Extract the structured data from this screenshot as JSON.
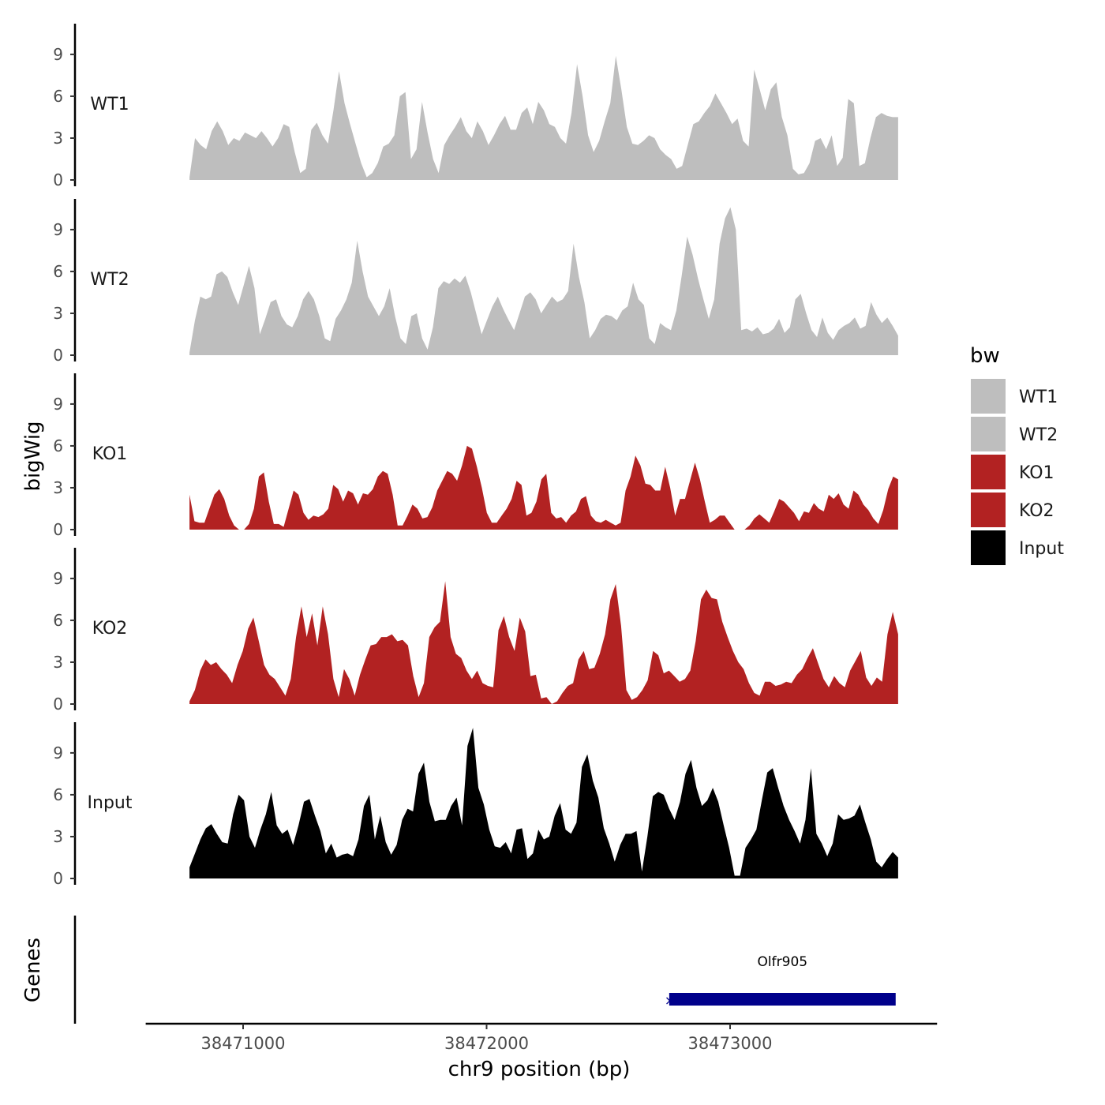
{
  "chart_data": {
    "type": "area",
    "xlabel": "chr9 position (bp)",
    "ylabel": "bigWig",
    "genes_label": "Genes",
    "xlim": [
      38470600,
      38473850
    ],
    "x_ticks": [
      38471000,
      38472000,
      38473000
    ],
    "x_tick_labels": [
      "38471000",
      "38472000",
      "38473000"
    ],
    "ylim": [
      0,
      11.2
    ],
    "y_ticks": [
      0,
      3,
      6,
      9
    ],
    "y_tick_labels": [
      "0",
      "3",
      "6",
      "9"
    ],
    "track_x_start": 38470780,
    "track_x_end": 38473690,
    "legend": {
      "title": "bw",
      "items": [
        {
          "label": "WT1",
          "color": "#BEBEBE"
        },
        {
          "label": "WT2",
          "color": "#BEBEBE"
        },
        {
          "label": "KO1",
          "color": "#B22222"
        },
        {
          "label": "KO2",
          "color": "#B22222"
        },
        {
          "label": "Input",
          "color": "#000000"
        }
      ]
    },
    "series": [
      {
        "name": "WT1",
        "color": "#BEBEBE",
        "values": [
          0.2,
          3,
          2.5,
          2.2,
          3.5,
          4.2,
          3.5,
          2.5,
          3,
          2.8,
          3.4,
          3.2,
          3,
          3.5,
          3,
          2.4,
          3,
          4,
          3.8,
          2,
          0.5,
          0.8,
          3.6,
          4.1,
          3.2,
          2.6,
          5,
          7.8,
          5.5,
          4,
          2.6,
          1.2,
          0.2,
          0.5,
          1.2,
          2.4,
          2.6,
          3.2,
          6,
          6.3,
          1.5,
          2.2,
          5.6,
          3.4,
          1.5,
          0.5,
          2.5,
          3.2,
          3.8,
          4.5,
          3.5,
          3,
          4.2,
          3.5,
          2.5,
          3.2,
          4,
          4.6,
          3.6,
          3.6,
          4.8,
          5.2,
          4,
          5.6,
          5,
          4,
          3.8,
          3,
          2.6,
          4.8,
          8.3,
          6,
          3.2,
          2,
          2.8,
          4.2,
          5.5,
          8.9,
          6.5,
          3.8,
          2.6,
          2.5,
          2.8,
          3.2,
          3,
          2.2,
          1.8,
          1.5,
          0.8,
          1,
          2.5,
          4,
          4.2,
          4.8,
          5.3,
          6.2,
          5.5,
          4.8,
          4,
          4.4,
          2.8,
          2.4,
          7.9,
          6.5,
          5,
          6.5,
          7,
          4.5,
          3.2,
          0.8,
          0.4,
          0.5,
          1.2,
          2.8,
          3,
          2.2,
          3.2,
          1,
          1.6,
          5.8,
          5.5,
          1,
          1.2,
          3,
          4.5,
          4.8,
          4.6,
          4.5,
          4.5
        ]
      },
      {
        "name": "WT2",
        "color": "#BEBEBE",
        "values": [
          0.2,
          2.5,
          4.2,
          4,
          4.2,
          5.8,
          6,
          5.6,
          4.5,
          3.6,
          5,
          6.4,
          4.8,
          1.5,
          2.6,
          3.8,
          4,
          2.8,
          2.2,
          2,
          2.8,
          4,
          4.6,
          4,
          2.8,
          1.2,
          1,
          2.6,
          3.2,
          4,
          5.2,
          8.2,
          6,
          4.2,
          3.5,
          2.8,
          3.5,
          4.8,
          2.8,
          1.2,
          0.8,
          2.8,
          3,
          1.2,
          0.4,
          2,
          4.8,
          5.3,
          5.1,
          5.5,
          5.2,
          5.7,
          4.5,
          3,
          1.5,
          2.5,
          3.5,
          4.2,
          3.3,
          2.5,
          1.8,
          3,
          4.2,
          4.5,
          4,
          3,
          3.6,
          4.2,
          3.8,
          4,
          4.6,
          8,
          5.6,
          3.8,
          1.2,
          1.8,
          2.6,
          2.9,
          2.8,
          2.5,
          3.2,
          3.5,
          5.2,
          4,
          3.6,
          1.2,
          0.8,
          2.3,
          2,
          1.8,
          3.2,
          5.7,
          8.5,
          7.2,
          5.5,
          4,
          2.6,
          4,
          8,
          9.8,
          10.6,
          9,
          1.8,
          1.9,
          1.7,
          2,
          1.5,
          1.6,
          1.9,
          2.6,
          1.6,
          2,
          4,
          4.4,
          3,
          1.8,
          1.3,
          2.7,
          1.6,
          1.1,
          1.8,
          2.1,
          2.3,
          2.7,
          1.9,
          2.1,
          3.8,
          2.9,
          2.3,
          2.7,
          2.1,
          1.4
        ]
      },
      {
        "name": "KO1",
        "color": "#B22222",
        "values": [
          2.5,
          0.6,
          0.5,
          0.5,
          1.5,
          2.5,
          2.9,
          2.2,
          1,
          0.3,
          0,
          0,
          0.4,
          1.5,
          3.8,
          4.1,
          2,
          0.4,
          0.4,
          0.2,
          1.5,
          2.8,
          2.5,
          1.2,
          0.7,
          1,
          0.9,
          1.1,
          1.5,
          3.2,
          2.9,
          2,
          2.8,
          2.6,
          1.8,
          2.6,
          2.5,
          2.9,
          3.8,
          4.2,
          4,
          2.5,
          0.3,
          0.3,
          1,
          1.8,
          1.5,
          0.8,
          0.9,
          1.6,
          2.8,
          3.5,
          4.2,
          4,
          3.5,
          4.6,
          6,
          5.8,
          4.5,
          3,
          1.2,
          0.5,
          0.5,
          1,
          1.5,
          2.2,
          3.5,
          3.2,
          1,
          1.2,
          2,
          3.6,
          4,
          1.2,
          0.8,
          0.9,
          0.5,
          1,
          1.3,
          2.2,
          2.4,
          1,
          0.6,
          0.5,
          0.7,
          0.5,
          0.3,
          0.5,
          2.8,
          3.8,
          5.3,
          4.6,
          3.3,
          3.2,
          2.8,
          2.8,
          4.5,
          3,
          1,
          2.2,
          2.2,
          3.5,
          4.8,
          3.6,
          2,
          0.5,
          0.7,
          1,
          1,
          0.5,
          0,
          0,
          0,
          0.3,
          0.8,
          1.1,
          0.8,
          0.5,
          1.3,
          2.2,
          2,
          1.6,
          1.2,
          0.6,
          1.3,
          1.2,
          1.9,
          1.5,
          1.3,
          2.5,
          2.2,
          2.6,
          1.8,
          1.5,
          2.8,
          2.5,
          1.8,
          1.4,
          0.8,
          0.4,
          1.4,
          2.9,
          3.8,
          3.6
        ]
      },
      {
        "name": "KO2",
        "color": "#B22222",
        "values": [
          0.2,
          1,
          2.4,
          3.2,
          2.8,
          3,
          2.5,
          2.1,
          1.5,
          2.8,
          3.8,
          5.4,
          6.2,
          4.5,
          2.8,
          2.1,
          1.8,
          1.2,
          0.6,
          1.8,
          4.8,
          7,
          4.8,
          6.5,
          4.2,
          7,
          5,
          1.8,
          0.5,
          2.5,
          1.8,
          0.6,
          2.1,
          3.2,
          4.2,
          4.3,
          4.8,
          4.8,
          5,
          4.5,
          4.6,
          4.2,
          2,
          0.5,
          1.5,
          4.8,
          5.5,
          5.9,
          8.8,
          4.8,
          3.6,
          3.3,
          2.4,
          1.8,
          2.4,
          1.5,
          1.3,
          1.2,
          5.3,
          6.3,
          4.8,
          3.8,
          6.2,
          5.2,
          2,
          2.1,
          0.4,
          0.5,
          0,
          0.2,
          0.8,
          1.3,
          1.5,
          3.2,
          3.8,
          2.5,
          2.6,
          3.6,
          5,
          7.5,
          8.6,
          5.6,
          1,
          0.3,
          0.5,
          1,
          1.7,
          3.8,
          3.5,
          2.2,
          2.4,
          2,
          1.6,
          1.8,
          2.4,
          4.5,
          7.5,
          8.2,
          7.6,
          7.5,
          5.9,
          4.8,
          3.8,
          3,
          2.5,
          1.5,
          0.8,
          0.6,
          1.6,
          1.6,
          1.3,
          1.4,
          1.6,
          1.5,
          2.1,
          2.5,
          3.3,
          4,
          2.9,
          1.8,
          1.2,
          2,
          1.5,
          1.2,
          2.4,
          3.1,
          3.8,
          1.9,
          1.3,
          1.9,
          1.6,
          5,
          6.6,
          5
        ]
      },
      {
        "name": "Input",
        "color": "#000000",
        "values": [
          0.8,
          1.8,
          2.8,
          3.6,
          3.9,
          3.2,
          2.6,
          2.5,
          4.6,
          6,
          5.6,
          3,
          2.2,
          3.5,
          4.6,
          6.2,
          3.8,
          3.2,
          3.5,
          2.4,
          3.8,
          5.5,
          5.7,
          4.5,
          3.4,
          1.8,
          2.5,
          1.5,
          1.7,
          1.8,
          1.6,
          2.8,
          5.2,
          6,
          2.8,
          4.5,
          2.6,
          1.7,
          2.4,
          4.2,
          5,
          4.8,
          7.5,
          8.3,
          5.5,
          4.1,
          4.2,
          4.2,
          5.2,
          5.8,
          3.8,
          9.5,
          10.8,
          6.5,
          5.3,
          3.5,
          2.3,
          2.2,
          2.6,
          1.8,
          3.5,
          3.6,
          1.4,
          1.8,
          3.5,
          2.8,
          3,
          4.5,
          5.4,
          3.5,
          3.2,
          4,
          8,
          8.9,
          7,
          5.8,
          3.6,
          2.5,
          1.2,
          2.4,
          3.2,
          3.2,
          3.4,
          0.5,
          3,
          5.9,
          6.2,
          6,
          5,
          4.2,
          5.5,
          7.5,
          8.5,
          6.5,
          5.2,
          5.6,
          6.5,
          5.5,
          3.8,
          2.2,
          0.2,
          0.2,
          2.2,
          2.8,
          3.5,
          5.6,
          7.6,
          7.9,
          6.5,
          5.2,
          4.2,
          3.4,
          2.5,
          4.2,
          7.9,
          3.2,
          2.5,
          1.6,
          2.5,
          4.6,
          4.2,
          4.3,
          4.5,
          5.3,
          4,
          2.8,
          1.2,
          0.8,
          1.4,
          1.9,
          1.5
        ]
      }
    ],
    "gene": {
      "name": "Olfr905",
      "start": 38472750,
      "end": 38473680,
      "color": "#00008B"
    }
  }
}
